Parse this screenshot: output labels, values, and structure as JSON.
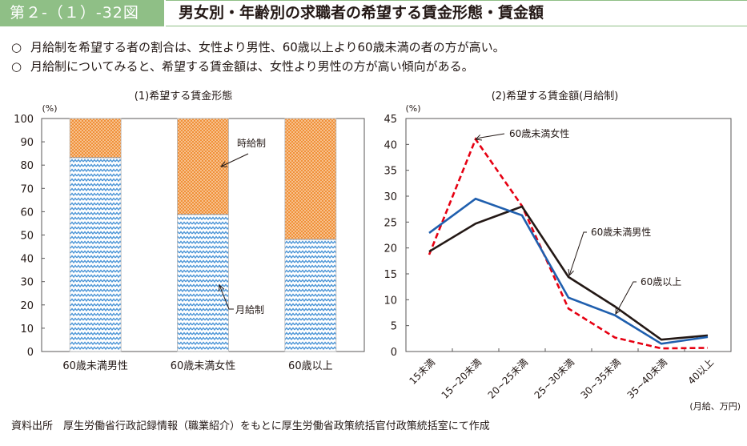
{
  "header": {
    "figure_number": "第２-（１）-32図",
    "title": "男女別・年齢別の求職者の希望する賃金形態・賃金額"
  },
  "bullets": [
    {
      "mark": "○",
      "text": "月給制を希望する者の割合は、女性より男性、60歳以上より60歳未満の者の方が高い。"
    },
    {
      "mark": "○",
      "text": "月給制についてみると、希望する賃金額は、女性より男性の方が高い傾向がある。"
    }
  ],
  "source": "資料出所　厚生労働省行政記録情報（職業紹介）をもとに厚生労働省政策統括官付政策統括室にて作成",
  "colors": {
    "header_green": "#8fbf86",
    "monthly_blue": "#4a94d6",
    "hourly_orange": "#f0913a",
    "line_male": "#231815",
    "line_female": "#e60012",
    "line_60plus": "#1f5fae"
  },
  "chart_data": [
    {
      "type": "bar",
      "stacked": true,
      "title": "(1)希望する賃金形態",
      "ylabel": "(%)",
      "xlabel": "",
      "ylim": [
        0,
        100
      ],
      "yticks": [
        0,
        10,
        20,
        30,
        40,
        50,
        60,
        70,
        80,
        90,
        100
      ],
      "categories": [
        "60歳未満男性",
        "60歳未満女性",
        "60歳以上"
      ],
      "series": [
        {
          "name": "月給制",
          "values": [
            83.2,
            58.8,
            48.1
          ]
        },
        {
          "name": "時給制",
          "values": [
            16.8,
            41.2,
            51.9
          ]
        }
      ],
      "annotations": [
        {
          "text": "時給制",
          "target_series": "時給制",
          "target_category": "60歳未満女性"
        },
        {
          "text": "月給制",
          "target_series": "月給制",
          "target_category": "60歳未満女性"
        }
      ],
      "grid": false
    },
    {
      "type": "line",
      "title": "(2)希望する賃金額(月給制)",
      "ylabel": "(%)",
      "xlabel": "(月給、万円)",
      "ylim": [
        0,
        45
      ],
      "yticks": [
        0,
        5,
        10,
        15,
        20,
        25,
        30,
        35,
        40,
        45
      ],
      "categories": [
        "15未満",
        "15~20未満",
        "20~25未満",
        "25~30未満",
        "30~35未満",
        "35~40未満",
        "40以上"
      ],
      "series": [
        {
          "name": "60歳未満男性",
          "style": "solid",
          "values": [
            19.3,
            24.7,
            28.0,
            14.4,
            8.7,
            2.3,
            3.1
          ]
        },
        {
          "name": "60歳未満女性",
          "style": "dashed",
          "values": [
            18.7,
            41.0,
            28.1,
            8.3,
            2.7,
            0.6,
            0.7
          ]
        },
        {
          "name": "60歳以上",
          "style": "solid",
          "values": [
            22.9,
            29.5,
            26.3,
            10.4,
            7.0,
            1.5,
            2.8
          ]
        }
      ],
      "annotations": [
        {
          "text": "60歳未満女性",
          "target_series": "60歳未満女性",
          "target_category": "15~20未満"
        },
        {
          "text": "60歳未満男性",
          "target_series": "60歳未満男性",
          "target_category": "25~30未満"
        },
        {
          "text": "60歳以上",
          "target_series": "60歳以上",
          "target_category": "30~35未満"
        }
      ],
      "grid": false
    }
  ]
}
